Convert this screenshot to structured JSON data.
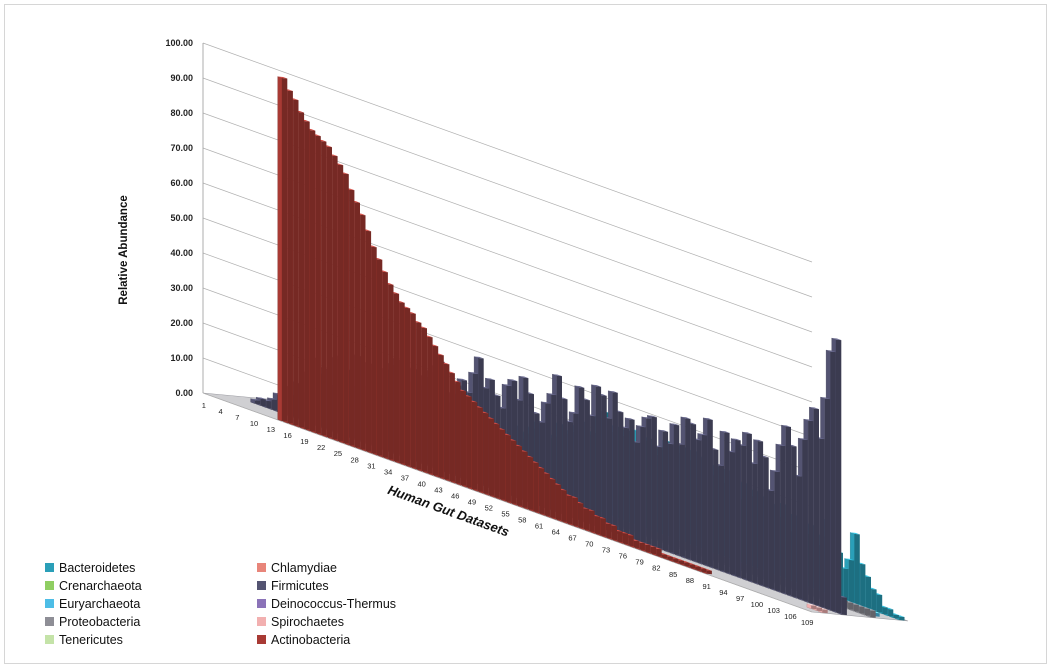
{
  "chart_data": {
    "type": "bar",
    "subtype": "3d-stacked-depth",
    "title": "",
    "ylabel": "Relative Abundance",
    "xlabel": "Human Gut Datasets",
    "ylim": [
      0,
      100
    ],
    "y_ticks": [
      "0.00",
      "10.00",
      "20.00",
      "30.00",
      "40.00",
      "50.00",
      "60.00",
      "70.00",
      "80.00",
      "90.00",
      "100.00"
    ],
    "x_tick_labels": [
      "1",
      "4",
      "7",
      "10",
      "13",
      "16",
      "19",
      "22",
      "25",
      "28",
      "31",
      "34",
      "37",
      "40",
      "43",
      "46",
      "49",
      "52",
      "55",
      "58",
      "61",
      "64",
      "67",
      "70",
      "73",
      "76",
      "79",
      "82",
      "85",
      "88",
      "91",
      "94",
      "97",
      "100",
      "103",
      "106",
      "109"
    ],
    "grid": true,
    "legend_placement": "bottom-left",
    "series": [
      {
        "name": "Bacteroidetes",
        "color": "#2a9fb8",
        "values": [
          0,
          0,
          0,
          0,
          0,
          0,
          0,
          0,
          0,
          0,
          0,
          0,
          0,
          1,
          3,
          2,
          1,
          5,
          2,
          1,
          1,
          2,
          6,
          5,
          6,
          6,
          9,
          10,
          2,
          4,
          12,
          10,
          11,
          14,
          6,
          6,
          4,
          3,
          11,
          16,
          13,
          15,
          17,
          19,
          17,
          16,
          17,
          21,
          19,
          20,
          22,
          24,
          21,
          22,
          27,
          29,
          24,
          26,
          24,
          26,
          21,
          27,
          25,
          26,
          22,
          24,
          27,
          27,
          25,
          27,
          24,
          27,
          26,
          23,
          22,
          25,
          21,
          25,
          24,
          18,
          23,
          20,
          22,
          21,
          18,
          20,
          17,
          21,
          14,
          19,
          16,
          15,
          18,
          13,
          16,
          21,
          18,
          13,
          9,
          12,
          20,
          12,
          9,
          6,
          5,
          2,
          2,
          1,
          1
        ]
      },
      {
        "name": "Crenarchaeota",
        "color": "#8fce62",
        "values": [
          0,
          0,
          0,
          0,
          0,
          0,
          0,
          0,
          0,
          0,
          0,
          0,
          0,
          0,
          0,
          0,
          0,
          0,
          0,
          0,
          0,
          0,
          0,
          0,
          0,
          0,
          0,
          0,
          0,
          0,
          0,
          0,
          0,
          0,
          0,
          0,
          0,
          0,
          0,
          0,
          0,
          0,
          0,
          0,
          0,
          0,
          0,
          0,
          0,
          0,
          0,
          0,
          0,
          0,
          0,
          0,
          0,
          0,
          0,
          0,
          0,
          0,
          0,
          0,
          0,
          0,
          0,
          0,
          0,
          0,
          0,
          0,
          0,
          0,
          0,
          0,
          0,
          0,
          0,
          0,
          0,
          0,
          0,
          0,
          0,
          0,
          0,
          0,
          0,
          0,
          0,
          0,
          0,
          0,
          0,
          0,
          0,
          0,
          0,
          0,
          0,
          0,
          0,
          0,
          0,
          0,
          0,
          0,
          0
        ]
      },
      {
        "name": "Euryarchaeota",
        "color": "#4dbde6",
        "values": [
          0,
          0,
          0,
          0,
          0,
          0,
          0,
          0,
          0,
          0,
          0,
          0,
          0,
          0,
          0,
          0,
          0,
          0,
          0,
          0,
          0,
          0,
          0,
          0,
          0,
          0,
          0,
          0,
          0,
          0,
          0,
          0,
          0,
          0,
          0,
          0,
          0,
          0,
          0,
          0,
          0,
          0,
          0,
          0,
          0,
          0,
          0,
          0,
          0,
          0,
          0,
          0,
          0,
          0,
          0,
          0,
          0,
          0,
          0,
          0,
          0,
          0,
          0,
          0,
          0,
          0,
          0,
          0,
          0,
          0,
          0,
          0,
          0,
          0,
          0,
          0,
          0,
          0,
          0,
          0,
          0,
          0,
          0,
          0,
          0,
          0,
          0,
          0,
          0,
          0,
          0,
          0,
          0,
          0,
          0,
          0,
          0,
          0,
          0,
          0,
          0,
          0,
          0,
          0,
          0,
          0,
          1,
          1,
          0
        ]
      },
      {
        "name": "Proteobacteria",
        "color": "#8e8e96",
        "values": [
          0,
          0,
          0,
          0,
          0,
          1,
          2,
          3,
          4,
          6,
          8,
          9,
          10,
          11,
          10,
          9,
          8,
          7,
          6,
          5,
          5,
          4,
          4,
          3,
          3,
          3,
          3,
          3,
          3,
          2,
          2,
          2,
          2,
          2,
          2,
          2,
          2,
          2,
          2,
          2,
          2,
          3,
          2,
          2,
          2,
          2,
          2,
          2,
          2,
          2,
          2,
          2,
          2,
          2,
          2,
          2,
          2,
          2,
          2,
          2,
          2,
          2,
          2,
          2,
          2,
          2,
          2,
          2,
          2,
          2,
          2,
          2,
          2,
          2,
          2,
          2,
          2,
          2,
          2,
          2,
          2,
          2,
          2,
          2,
          2,
          2,
          2,
          2,
          2,
          2,
          2,
          2,
          2,
          2,
          2,
          2,
          2,
          2,
          2,
          2,
          2,
          2,
          2,
          2,
          2,
          2,
          2,
          2,
          2
        ]
      },
      {
        "name": "Tenericutes",
        "color": "#c4e3a8",
        "values": [
          0,
          0,
          0,
          0,
          0,
          0,
          0,
          0,
          0,
          0,
          0,
          0,
          0,
          0,
          0,
          0,
          0,
          0,
          0,
          0,
          0,
          0,
          0,
          0,
          0,
          0,
          0,
          0,
          0,
          0,
          0,
          0,
          0,
          0,
          0,
          0,
          0,
          0,
          0,
          0,
          0,
          0,
          0,
          0,
          0,
          0,
          0,
          0,
          0,
          0,
          0,
          0,
          0,
          0,
          0,
          0,
          0,
          0,
          0,
          0,
          0,
          0,
          0,
          0,
          0,
          0,
          0,
          0,
          0,
          0,
          0,
          0,
          0,
          0,
          0,
          0,
          0,
          0,
          0,
          0,
          0,
          0,
          0,
          0,
          0,
          0,
          0,
          0,
          0,
          0,
          0,
          0,
          0,
          0,
          0,
          0,
          0,
          0,
          0,
          0,
          0,
          0,
          0,
          0,
          0,
          0,
          0,
          0,
          0
        ]
      },
      {
        "name": "Chlamydiae",
        "color": "#e8857a",
        "values": [
          0,
          0,
          0,
          0,
          0,
          0,
          0,
          0,
          0,
          0,
          0,
          0,
          0,
          0,
          0,
          0,
          0,
          0,
          0,
          0,
          0,
          0,
          0,
          0,
          0,
          0,
          0,
          0,
          0,
          0,
          0,
          0,
          0,
          0,
          0,
          0,
          0,
          0,
          0,
          0,
          0,
          0,
          0,
          0,
          0,
          0,
          0,
          0,
          0,
          0,
          0,
          0,
          0,
          0,
          0,
          0,
          0,
          0,
          0,
          0,
          0,
          0,
          0,
          0,
          0,
          0,
          0,
          0,
          0,
          0,
          0,
          0,
          0,
          0,
          0,
          0,
          0,
          0,
          0,
          0,
          0,
          0,
          0,
          0,
          0,
          0,
          0,
          0,
          0,
          0,
          0,
          0,
          0,
          0,
          0,
          0,
          0,
          0,
          0,
          0,
          0,
          0,
          0,
          0,
          0,
          0,
          0,
          0,
          0
        ]
      },
      {
        "name": "Firmicutes",
        "color": "#545472",
        "values": [
          0,
          0,
          0,
          1,
          2,
          2,
          3,
          5,
          8,
          6,
          10,
          8,
          14,
          19,
          15,
          17,
          13,
          21,
          22,
          19,
          15,
          24,
          16,
          23,
          21,
          19,
          23,
          25,
          27,
          19,
          22,
          26,
          22,
          25,
          27,
          29,
          31,
          20,
          23,
          26,
          28,
          25,
          31,
          36,
          28,
          31,
          27,
          24,
          31,
          33,
          28,
          35,
          31,
          26,
          24,
          30,
          33,
          39,
          33,
          27,
          30,
          38,
          35,
          31,
          40,
          38,
          32,
          40,
          35,
          31,
          34,
          28,
          33,
          36,
          37,
          29,
          34,
          31,
          37,
          32,
          40,
          39,
          35,
          37,
          42,
          34,
          30,
          40,
          35,
          39,
          38,
          42,
          34,
          41,
          37,
          28,
          34,
          42,
          48,
          43,
          35,
          46,
          52,
          56,
          48,
          60,
          74,
          78,
          5
        ]
      },
      {
        "name": "Deinococcus-Thermus",
        "color": "#8b73b8",
        "values": [
          0,
          0,
          0,
          0,
          0,
          0,
          0,
          0,
          0,
          0,
          0,
          0,
          0,
          0,
          0,
          0,
          0,
          0,
          0,
          0,
          0,
          0,
          0,
          0,
          0,
          0,
          0,
          0,
          0,
          0,
          0,
          0,
          0,
          0,
          0,
          0,
          0,
          0,
          0,
          0,
          0,
          0,
          0,
          0,
          0,
          0,
          0,
          0,
          0,
          0,
          0,
          0,
          0,
          0,
          0,
          0,
          0,
          0,
          0,
          0,
          0,
          0,
          0,
          0,
          0,
          0,
          0,
          0,
          0,
          0,
          0,
          0,
          0,
          0,
          0,
          0,
          0,
          0,
          0,
          0,
          0,
          0,
          0,
          0,
          0,
          0,
          0,
          0,
          0,
          0,
          0,
          0,
          0,
          0,
          0,
          0,
          0,
          0,
          0,
          0,
          0,
          0,
          0,
          0,
          0,
          0,
          0,
          0,
          0
        ]
      },
      {
        "name": "Spirochaetes",
        "color": "#f2b0b0",
        "values": [
          0,
          0,
          0,
          0,
          0,
          0,
          0,
          0,
          0,
          0,
          0,
          0,
          0,
          0,
          0,
          0,
          0,
          0,
          0,
          0,
          0,
          0,
          0,
          0,
          0,
          0,
          0,
          0,
          0,
          0,
          0,
          0,
          0,
          0,
          0,
          0,
          0,
          0,
          0,
          0,
          0,
          0,
          0,
          0,
          0,
          0,
          0,
          0,
          0,
          0,
          0,
          0,
          0,
          0,
          0,
          0,
          0,
          0,
          0,
          0,
          0,
          0,
          0,
          0,
          0,
          0,
          0,
          0,
          0,
          0,
          0,
          0,
          0,
          0,
          0,
          0,
          0,
          0,
          0,
          0,
          0,
          0,
          0,
          0,
          0,
          0,
          0,
          0,
          0,
          0,
          0,
          0,
          0,
          0,
          0,
          0,
          0,
          0,
          0,
          0,
          0,
          0,
          0,
          0,
          0,
          0,
          1,
          1,
          1
        ]
      },
      {
        "name": "Actinobacteria",
        "color": "#a83a34",
        "values": [
          0,
          0,
          0,
          0,
          0,
          0,
          0,
          0,
          0,
          0,
          0,
          0,
          0,
          98,
          95,
          93,
          90,
          88,
          86,
          85,
          84,
          83,
          81,
          79,
          77,
          73,
          70,
          67,
          63,
          59,
          56,
          53,
          50,
          48,
          46,
          45,
          44,
          42,
          41,
          39,
          37,
          35,
          33,
          31,
          29,
          27,
          26,
          25,
          24,
          23,
          22,
          21,
          20,
          19,
          18,
          17,
          16,
          15,
          14,
          13,
          12,
          11,
          10,
          9,
          8,
          8,
          7,
          6,
          6,
          5,
          5,
          4,
          4,
          3,
          3,
          3,
          2,
          2,
          2,
          2,
          2,
          1,
          1,
          1,
          1,
          1,
          1,
          1,
          1,
          1,
          0,
          0,
          0,
          0,
          0,
          0,
          0,
          0,
          0,
          0,
          0,
          0,
          0,
          0,
          0,
          0,
          0,
          0,
          0
        ]
      }
    ],
    "legend": [
      {
        "name": "Bacteroidetes",
        "color": "#2a9fb8"
      },
      {
        "name": "Crenarchaeota",
        "color": "#8fce62"
      },
      {
        "name": "Euryarchaeota",
        "color": "#4dbde6"
      },
      {
        "name": "Proteobacteria",
        "color": "#8e8e96"
      },
      {
        "name": "Tenericutes",
        "color": "#c4e3a8"
      },
      {
        "name": "Chlamydiae",
        "color": "#e8857a"
      },
      {
        "name": "Firmicutes",
        "color": "#545472"
      },
      {
        "name": "Deinococcus-Thermus",
        "color": "#8b73b8"
      },
      {
        "name": "Spirochaetes",
        "color": "#f2b0b0"
      },
      {
        "name": "Actinobacteria",
        "color": "#a83a34"
      }
    ]
  }
}
